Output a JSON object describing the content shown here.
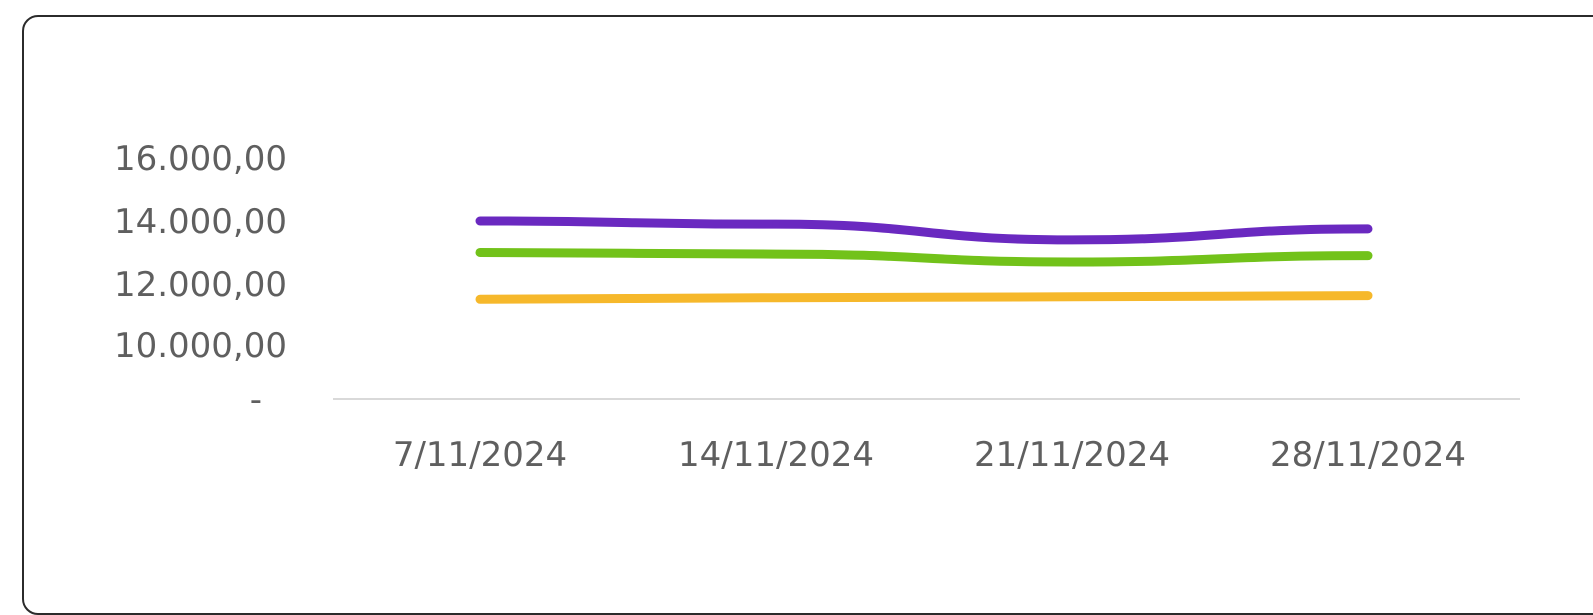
{
  "chart_data": {
    "type": "line",
    "title": "",
    "xlabel": "",
    "ylabel": "",
    "categories": [
      "7/11/2024",
      "14/11/2024",
      "21/11/2024",
      "28/11/2024"
    ],
    "y_ticks": [
      {
        "value": 0,
        "label": "-"
      },
      {
        "value": 10000,
        "label": "10.000,00"
      },
      {
        "value": 12000,
        "label": "12.000,00"
      },
      {
        "value": 14000,
        "label": "14.000,00"
      },
      {
        "value": 16000,
        "label": "16.000,00"
      }
    ],
    "ylim": [
      0,
      16000
    ],
    "grid": false,
    "legend": "none",
    "series": [
      {
        "color": "#6a29c0",
        "values": [
          14000,
          13900,
          13400,
          13750
        ]
      },
      {
        "color": "#72c21a",
        "values": [
          13000,
          12950,
          12700,
          12900
        ]
      },
      {
        "color": "#f6b82b",
        "values": [
          11500,
          11550,
          11580,
          11620
        ]
      }
    ],
    "colors": {
      "axis_line": "#d9d9d9",
      "tick_text": "#5f5f5f",
      "card_border": "#2b2b2b"
    }
  }
}
